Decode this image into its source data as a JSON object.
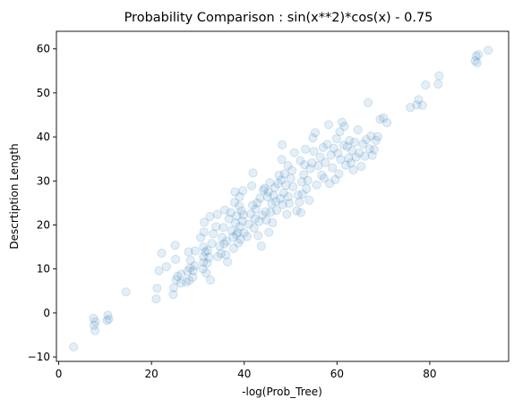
{
  "chart_data": {
    "type": "scatter",
    "title": "Probability Comparison : sin(x**2)*cos(x) - 0.75",
    "xlabel": "-log(Prob_Tree)",
    "ylabel": "Descrtiption Length",
    "xlim": [
      -0.5,
      97
    ],
    "ylim": [
      -11,
      64
    ],
    "xticks": [
      "0",
      "20",
      "40",
      "60",
      "80"
    ],
    "yticks": [
      "−10",
      "0",
      "10",
      "20",
      "30",
      "40",
      "50",
      "60"
    ],
    "grid": false,
    "point_color": "#1f77b4",
    "point_alpha": 0.12,
    "points": [
      [
        3.2,
        -7.7
      ],
      [
        7.5,
        -1.2
      ],
      [
        7.6,
        -2.8
      ],
      [
        7.8,
        -4.0
      ],
      [
        7.9,
        -2.0
      ],
      [
        10.6,
        -0.5
      ],
      [
        10.4,
        -1.7
      ],
      [
        10.8,
        -1.4
      ],
      [
        14.5,
        4.8
      ],
      [
        21.0,
        3.2
      ],
      [
        21.2,
        5.6
      ],
      [
        21.6,
        9.6
      ],
      [
        22.2,
        13.6
      ],
      [
        23.2,
        10.5
      ],
      [
        24.7,
        4.2
      ],
      [
        24.8,
        5.7
      ],
      [
        25.3,
        7.5
      ],
      [
        25.6,
        8.3
      ],
      [
        25.2,
        12.2
      ],
      [
        25.1,
        15.4
      ],
      [
        26.3,
        6.8
      ],
      [
        26.4,
        8.8
      ],
      [
        27.5,
        7.0
      ],
      [
        27.8,
        9.5
      ],
      [
        28.0,
        13.9
      ],
      [
        28.1,
        7.4
      ],
      [
        28.3,
        10.2
      ],
      [
        28.4,
        12.0
      ],
      [
        28.9,
        8.1
      ],
      [
        29.0,
        9.6
      ],
      [
        29.3,
        10.7
      ],
      [
        29.4,
        14.1
      ],
      [
        30.6,
        17.1
      ],
      [
        31.1,
        10.0
      ],
      [
        31.2,
        11.5
      ],
      [
        31.2,
        12.8
      ],
      [
        31.2,
        15.0
      ],
      [
        31.3,
        18.4
      ],
      [
        31.4,
        20.6
      ],
      [
        31.6,
        13.9
      ],
      [
        31.8,
        9.1
      ],
      [
        32.0,
        11.3
      ],
      [
        32.1,
        14.2
      ],
      [
        32.4,
        12.6
      ],
      [
        32.7,
        7.5
      ],
      [
        33.0,
        15.8
      ],
      [
        32.6,
        21.9
      ],
      [
        33.3,
        18.0
      ],
      [
        33.9,
        19.6
      ],
      [
        34.2,
        22.4
      ],
      [
        34.3,
        12.8
      ],
      [
        34.7,
        15.2
      ],
      [
        35.0,
        13.5
      ],
      [
        35.2,
        17.2
      ],
      [
        35.5,
        19.4
      ],
      [
        35.7,
        15.7
      ],
      [
        35.8,
        23.4
      ],
      [
        36.0,
        13.2
      ],
      [
        36.2,
        16.3
      ],
      [
        36.4,
        11.6
      ],
      [
        36.7,
        21.4
      ],
      [
        37.1,
        22.8
      ],
      [
        37.3,
        18.7
      ],
      [
        37.6,
        17.3
      ],
      [
        37.7,
        14.7
      ],
      [
        37.9,
        25.1
      ],
      [
        38.0,
        27.5
      ],
      [
        38.1,
        20.4
      ],
      [
        38.3,
        17.8
      ],
      [
        38.4,
        22.1
      ],
      [
        38.6,
        18.3
      ],
      [
        38.7,
        15.9
      ],
      [
        38.9,
        24.3
      ],
      [
        39.0,
        26.4
      ],
      [
        39.1,
        19.6
      ],
      [
        39.2,
        16.7
      ],
      [
        39.4,
        23.2
      ],
      [
        39.6,
        20.9
      ],
      [
        39.7,
        27.8
      ],
      [
        39.8,
        22.3
      ],
      [
        40.0,
        18.2
      ],
      [
        40.6,
        17.4
      ],
      [
        41.0,
        20.2
      ],
      [
        41.4,
        22.5
      ],
      [
        41.6,
        28.9
      ],
      [
        41.8,
        24.5
      ],
      [
        41.9,
        31.8
      ],
      [
        42.1,
        19.3
      ],
      [
        42.3,
        21.4
      ],
      [
        42.5,
        23.6
      ],
      [
        42.8,
        25.0
      ],
      [
        43.0,
        17.6
      ],
      [
        43.2,
        20.8
      ],
      [
        43.4,
        26.1
      ],
      [
        43.7,
        15.2
      ],
      [
        43.9,
        22.2
      ],
      [
        44.1,
        27.9
      ],
      [
        44.4,
        28.3
      ],
      [
        44.6,
        23.0
      ],
      [
        44.8,
        21.1
      ],
      [
        45.0,
        26.4
      ],
      [
        45.2,
        27.5
      ],
      [
        45.3,
        18.3
      ],
      [
        45.5,
        29.6
      ],
      [
        45.7,
        22.9
      ],
      [
        45.9,
        24.8
      ],
      [
        46.1,
        20.5
      ],
      [
        46.3,
        26.7
      ],
      [
        46.6,
        28.5
      ],
      [
        46.8,
        25.3
      ],
      [
        47.0,
        23.3
      ],
      [
        47.3,
        29.4
      ],
      [
        47.5,
        31.3
      ],
      [
        47.8,
        26.0
      ],
      [
        48.0,
        30.2
      ],
      [
        48.1,
        34.9
      ],
      [
        48.2,
        38.2
      ],
      [
        48.3,
        24.6
      ],
      [
        48.5,
        27.3
      ],
      [
        48.7,
        31.6
      ],
      [
        49.0,
        29.0
      ],
      [
        49.2,
        22.4
      ],
      [
        49.4,
        33.5
      ],
      [
        49.5,
        26.4
      ],
      [
        49.7,
        24.9
      ],
      [
        50.0,
        30.6
      ],
      [
        50.3,
        32.4
      ],
      [
        50.5,
        28.7
      ],
      [
        50.8,
        36.4
      ],
      [
        51.3,
        23.2
      ],
      [
        51.6,
        26.8
      ],
      [
        51.9,
        25.2
      ],
      [
        52.1,
        34.6
      ],
      [
        52.2,
        22.8
      ],
      [
        52.4,
        29.8
      ],
      [
        52.6,
        27.0
      ],
      [
        52.8,
        31.4
      ],
      [
        53.0,
        33.7
      ],
      [
        53.2,
        37.2
      ],
      [
        53.4,
        28.2
      ],
      [
        53.7,
        30.1
      ],
      [
        54.0,
        25.6
      ],
      [
        54.2,
        32.8
      ],
      [
        54.6,
        34.1
      ],
      [
        54.8,
        39.8
      ],
      [
        55.0,
        36.7
      ],
      [
        55.3,
        41.0
      ],
      [
        55.6,
        29.1
      ],
      [
        56.0,
        33.5
      ],
      [
        56.4,
        35.4
      ],
      [
        56.7,
        31.3
      ],
      [
        57.0,
        37.6
      ],
      [
        57.2,
        30.6
      ],
      [
        57.5,
        34.2
      ],
      [
        57.9,
        38.3
      ],
      [
        58.2,
        42.8
      ],
      [
        58.4,
        29.4
      ],
      [
        58.7,
        35.9
      ],
      [
        59.0,
        33.0
      ],
      [
        59.3,
        37.4
      ],
      [
        59.6,
        30.3
      ],
      [
        59.9,
        39.6
      ],
      [
        60.2,
        36.3
      ],
      [
        60.4,
        31.6
      ],
      [
        60.6,
        41.2
      ],
      [
        60.8,
        34.9
      ],
      [
        61.1,
        43.3
      ],
      [
        61.4,
        38.1
      ],
      [
        61.6,
        42.4
      ],
      [
        61.9,
        33.6
      ],
      [
        62.2,
        37.8
      ],
      [
        62.5,
        35.2
      ],
      [
        62.7,
        39.2
      ],
      [
        63.0,
        34.1
      ],
      [
        63.2,
        36.9
      ],
      [
        63.5,
        32.5
      ],
      [
        63.8,
        38.8
      ],
      [
        64.1,
        35.4
      ],
      [
        64.5,
        41.6
      ],
      [
        64.8,
        36.4
      ],
      [
        65.2,
        33.3
      ],
      [
        65.6,
        38.4
      ],
      [
        66.0,
        35.6
      ],
      [
        66.3,
        39.4
      ],
      [
        66.7,
        47.8
      ],
      [
        67.0,
        37.3
      ],
      [
        67.3,
        40.2
      ],
      [
        67.6,
        35.8
      ],
      [
        68.0,
        37.1
      ],
      [
        68.4,
        39.2
      ],
      [
        68.8,
        40.1
      ],
      [
        69.3,
        44.0
      ],
      [
        70.0,
        44.3
      ],
      [
        70.8,
        43.2
      ],
      [
        75.8,
        46.7
      ],
      [
        77.2,
        47.3
      ],
      [
        77.6,
        48.5
      ],
      [
        78.4,
        47.2
      ],
      [
        79.1,
        51.8
      ],
      [
        81.8,
        52.0
      ],
      [
        82.0,
        53.9
      ],
      [
        89.8,
        57.3
      ],
      [
        90.0,
        58.4
      ],
      [
        90.2,
        56.8
      ],
      [
        90.5,
        58.7
      ],
      [
        92.6,
        59.7
      ]
    ]
  }
}
